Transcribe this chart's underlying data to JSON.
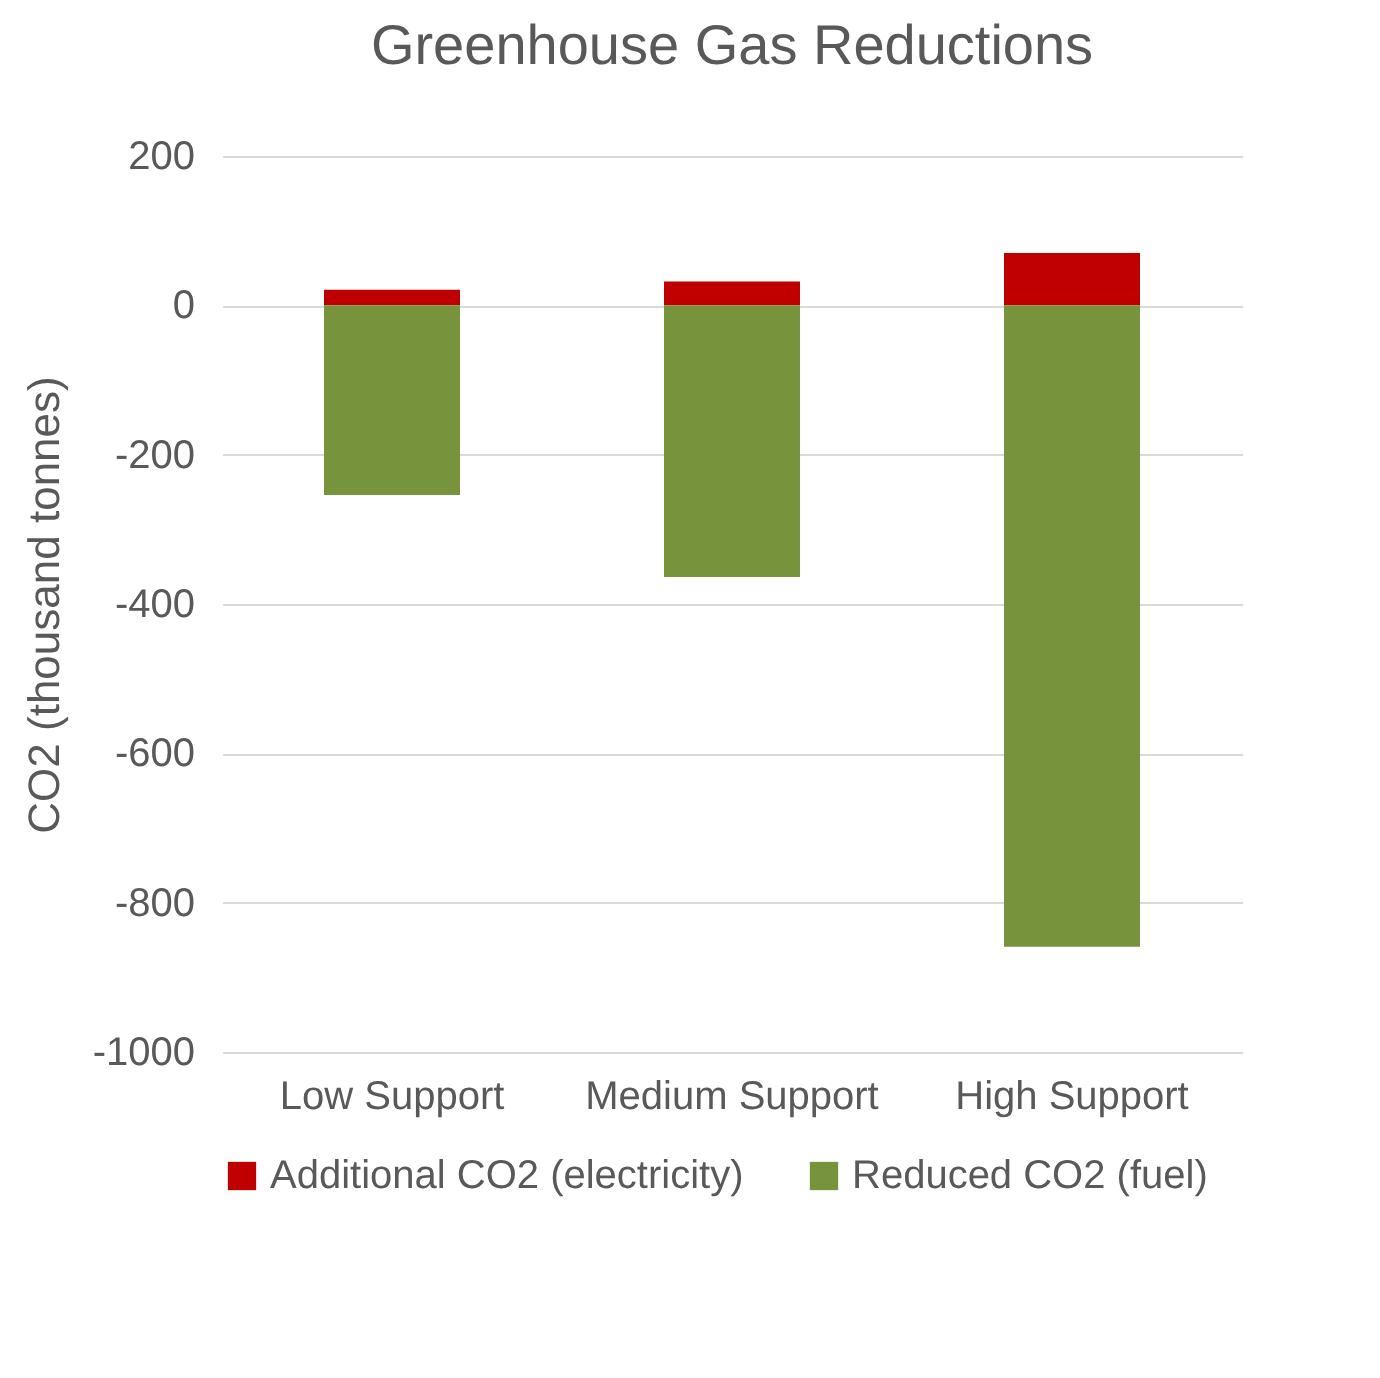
{
  "chart_data": {
    "type": "bar",
    "title": "Greenhouse Gas Reductions",
    "ylabel": "CO2 (thousand tonnes)",
    "categories": [
      "Low Support",
      "Medium Support",
      "High Support"
    ],
    "series": [
      {
        "name": "Additional CO2 (electricity)",
        "color": "#c00000",
        "values": [
          21,
          32,
          70
        ]
      },
      {
        "name": "Reduced CO2 (fuel)",
        "color": "#77933c",
        "values": [
          -254,
          -364,
          -859
        ]
      }
    ],
    "stacked": true,
    "ylim": [
      -1000,
      200
    ],
    "yticks": [
      200,
      0,
      -200,
      -400,
      -600,
      -800,
      -1000
    ],
    "grid": "y",
    "legend": "bottom"
  }
}
